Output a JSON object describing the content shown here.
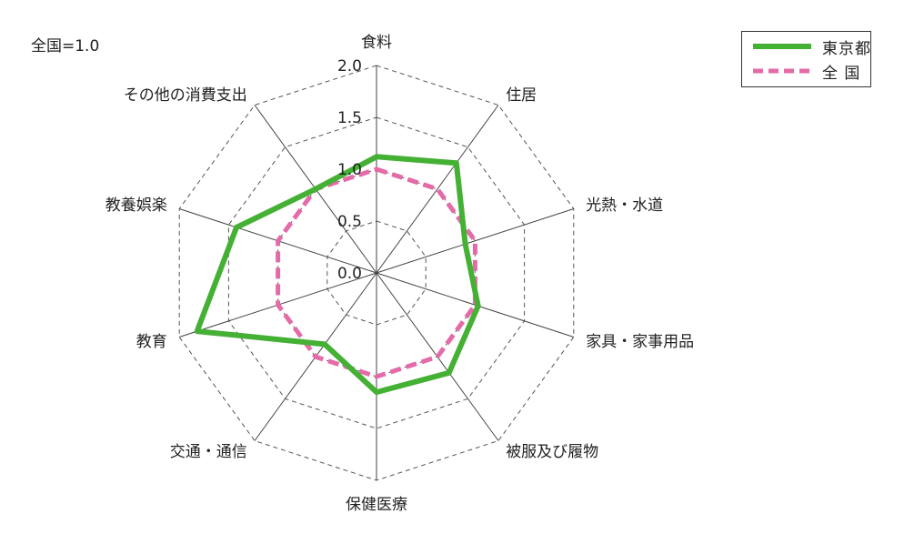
{
  "chart_data": {
    "type": "radar",
    "note": "全国=1.0",
    "categories": [
      "食料",
      "住居",
      "光熱・水道",
      "家具・家事用品",
      "被服及び履物",
      "保健医療",
      "交通・通信",
      "教育",
      "教養娯楽",
      "その他の消費支出"
    ],
    "radial_ticks": [
      "0.0",
      "0.5",
      "1.0",
      "1.5",
      "2.0"
    ],
    "rmax": 2.0,
    "series": [
      {
        "name": "東京都",
        "values": [
          1.12,
          1.31,
          0.9,
          1.03,
          1.19,
          1.15,
          0.85,
          1.82,
          1.42,
          1.0
        ],
        "color": "#44b034",
        "style": "solid"
      },
      {
        "name": "全 国",
        "values": [
          1.0,
          1.0,
          1.0,
          1.0,
          1.0,
          1.0,
          1.0,
          1.0,
          1.0,
          1.0
        ],
        "color": "#e56aa8",
        "style": "dashed"
      }
    ],
    "legend_position": "top-right"
  }
}
